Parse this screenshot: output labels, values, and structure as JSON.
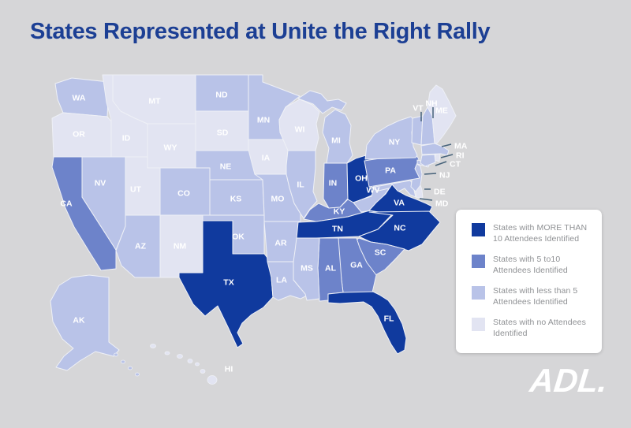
{
  "title": "States Represented at Unite the Right Rally",
  "logo_text": "ADL.",
  "colors": {
    "background": "#d6d6d8",
    "title_text": "#1c3f94",
    "legend_bg": "#ffffff",
    "legend_text": "#8f9194",
    "state_border": "#eef0f6",
    "state_label_text": "#ffffff",
    "callout_line": "#46627a",
    "more_than_10": "#103a9e",
    "five_to_10": "#6d83ca",
    "less_than_5": "#b9c3e8",
    "none": "#e2e4f2"
  },
  "chart_data": {
    "type": "choropleth",
    "title": "States Represented at Unite the Right Rally",
    "legend_position": "right",
    "categories": [
      {
        "key": "more_than_10",
        "label": "States with MORE THAN 10 Attendees Identified",
        "color": "#103a9e"
      },
      {
        "key": "five_to_10",
        "label": "States with 5 to10 Attendees Identified",
        "color": "#6d83ca"
      },
      {
        "key": "less_than_5",
        "label": "States with less than 5 Attendees Identified",
        "color": "#b9c3e8"
      },
      {
        "key": "none",
        "label": "States with no Attendees Identified",
        "color": "#e2e4f2"
      }
    ],
    "states": [
      {
        "id": "WA",
        "label": "WA",
        "category": "less_than_5"
      },
      {
        "id": "OR",
        "label": "OR",
        "category": "none"
      },
      {
        "id": "CA",
        "label": "CA",
        "category": "five_to_10"
      },
      {
        "id": "NV",
        "label": "NV",
        "category": "less_than_5"
      },
      {
        "id": "ID",
        "label": "ID",
        "category": "none"
      },
      {
        "id": "MT",
        "label": "MT",
        "category": "none"
      },
      {
        "id": "WY",
        "label": "WY",
        "category": "none"
      },
      {
        "id": "UT",
        "label": "UT",
        "category": "none"
      },
      {
        "id": "CO",
        "label": "CO",
        "category": "less_than_5"
      },
      {
        "id": "AZ",
        "label": "AZ",
        "category": "less_than_5"
      },
      {
        "id": "NM",
        "label": "NM",
        "category": "none"
      },
      {
        "id": "ND",
        "label": "ND",
        "category": "less_than_5"
      },
      {
        "id": "SD",
        "label": "SD",
        "category": "none"
      },
      {
        "id": "NE",
        "label": "NE",
        "category": "less_than_5"
      },
      {
        "id": "KS",
        "label": "KS",
        "category": "less_than_5"
      },
      {
        "id": "OK",
        "label": "OK",
        "category": "less_than_5"
      },
      {
        "id": "TX",
        "label": "TX",
        "category": "more_than_10"
      },
      {
        "id": "MN",
        "label": "MN",
        "category": "less_than_5"
      },
      {
        "id": "IA",
        "label": "IA",
        "category": "none"
      },
      {
        "id": "MO",
        "label": "MO",
        "category": "less_than_5"
      },
      {
        "id": "AR",
        "label": "AR",
        "category": "less_than_5"
      },
      {
        "id": "LA",
        "label": "LA",
        "category": "less_than_5"
      },
      {
        "id": "WI",
        "label": "WI",
        "category": "none"
      },
      {
        "id": "IL",
        "label": "IL",
        "category": "less_than_5"
      },
      {
        "id": "MI",
        "label": "MI",
        "category": "less_than_5"
      },
      {
        "id": "IN",
        "label": "IN",
        "category": "five_to_10"
      },
      {
        "id": "OH",
        "label": "OH",
        "category": "more_than_10"
      },
      {
        "id": "KY",
        "label": "KY",
        "category": "five_to_10"
      },
      {
        "id": "TN",
        "label": "TN",
        "category": "more_than_10"
      },
      {
        "id": "WV",
        "label": "WV",
        "category": "less_than_5"
      },
      {
        "id": "MD",
        "label": "MD",
        "category": "less_than_5"
      },
      {
        "id": "DE",
        "label": "DE",
        "category": "none"
      },
      {
        "id": "NJ",
        "label": "NJ",
        "category": "less_than_5"
      },
      {
        "id": "PA",
        "label": "PA",
        "category": "five_to_10"
      },
      {
        "id": "NY",
        "label": "NY",
        "category": "less_than_5"
      },
      {
        "id": "VT",
        "label": "VT",
        "category": "less_than_5"
      },
      {
        "id": "NH",
        "label": "NH",
        "category": "less_than_5"
      },
      {
        "id": "ME",
        "label": "ME",
        "category": "none"
      },
      {
        "id": "MA",
        "label": "MA",
        "category": "less_than_5"
      },
      {
        "id": "RI",
        "label": "RI",
        "category": "none"
      },
      {
        "id": "CT",
        "label": "CT",
        "category": "less_than_5"
      },
      {
        "id": "VA",
        "label": "VA",
        "category": "more_than_10"
      },
      {
        "id": "NC",
        "label": "NC",
        "category": "more_than_10"
      },
      {
        "id": "SC",
        "label": "SC",
        "category": "five_to_10"
      },
      {
        "id": "GA",
        "label": "GA",
        "category": "five_to_10"
      },
      {
        "id": "AL",
        "label": "AL",
        "category": "five_to_10"
      },
      {
        "id": "MS",
        "label": "MS",
        "category": "less_than_5"
      },
      {
        "id": "FL",
        "label": "FL",
        "category": "more_than_10"
      },
      {
        "id": "AK",
        "label": "AK",
        "category": "less_than_5"
      },
      {
        "id": "HI",
        "label": "HI",
        "category": "none"
      }
    ]
  }
}
